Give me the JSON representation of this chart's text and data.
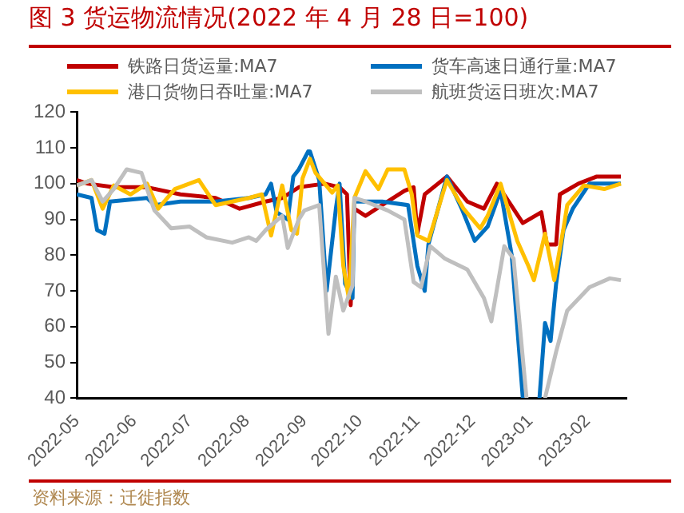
{
  "chart_data": {
    "type": "line",
    "title": "图 3 货运物流情况(2022 年 4 月 28 日=100)",
    "annotations": [
      "资料来源：迁徙指数"
    ],
    "legend": "top",
    "marker": "none",
    "line_style": "solid",
    "xlim": [
      "2022-05-01",
      "2023-02-22"
    ],
    "xticks": [
      "2022-05",
      "2022-06",
      "2022-07",
      "2022-08",
      "2022-09",
      "2022-10",
      "2022-11",
      "2022-12",
      "2023-01",
      "2023-02"
    ],
    "ylim": [
      40,
      120
    ],
    "yticks": [
      40,
      50,
      60,
      70,
      80,
      90,
      100,
      110,
      120
    ],
    "series": [
      {
        "name": "铁路日货运量:MA7",
        "color": "#c00000",
        "x": [
          "2022-05-01",
          "2022-05-07",
          "2022-05-21",
          "2022-06-08",
          "2022-06-26",
          "2022-07-15",
          "2022-07-28",
          "2022-08-11",
          "2022-08-20",
          "2022-08-29",
          "2022-09-12",
          "2022-09-20",
          "2022-09-24",
          "2022-09-26",
          "2022-09-28",
          "2022-10-04",
          "2022-10-13",
          "2022-10-25",
          "2022-10-30",
          "2022-11-01",
          "2022-11-05",
          "2022-11-17",
          "2022-11-28",
          "2022-12-07",
          "2022-12-14",
          "2022-12-28",
          "2023-01-07",
          "2023-01-10",
          "2023-01-15",
          "2023-01-17",
          "2023-01-27",
          "2023-02-06",
          "2023-02-19"
        ],
        "values": [
          101,
          100,
          99,
          99,
          97,
          96,
          93,
          95,
          96,
          99,
          100,
          99,
          97,
          66,
          93,
          91,
          94,
          98,
          99,
          86,
          97,
          102,
          95,
          93,
          100,
          89,
          92,
          83,
          83,
          97,
          100,
          102,
          102
        ]
      },
      {
        "name": "货车高速日通行量:MA7",
        "color": "#0070c0",
        "x": [
          "2022-05-01",
          "2022-05-09",
          "2022-05-12",
          "2022-05-16",
          "2022-05-19",
          "2022-06-08",
          "2022-06-12",
          "2022-06-26",
          "2022-07-15",
          "2022-08-02",
          "2022-08-11",
          "2022-08-14",
          "2022-08-17",
          "2022-08-23",
          "2022-08-26",
          "2022-08-29",
          "2022-09-03",
          "2022-09-04",
          "2022-09-09",
          "2022-09-13",
          "2022-09-18",
          "2022-09-20",
          "2022-09-23",
          "2022-09-27",
          "2022-09-28",
          "2022-10-13",
          "2022-10-27",
          "2022-11-01",
          "2022-11-05",
          "2022-11-07",
          "2022-11-17",
          "2022-11-25",
          "2022-12-02",
          "2022-12-09",
          "2022-12-16",
          "2022-12-22",
          "2022-12-28",
          "2023-01-01",
          "2023-01-06",
          "2023-01-09",
          "2023-01-12",
          "2023-01-15",
          "2023-01-19",
          "2023-01-24",
          "2023-02-02",
          "2023-02-19"
        ],
        "values": [
          97,
          96,
          87,
          86,
          95,
          96,
          94,
          95,
          95,
          96,
          97,
          100,
          92,
          90,
          102,
          104,
          109,
          109,
          101,
          70,
          93,
          100,
          72,
          68,
          95,
          95,
          94,
          77,
          70,
          83,
          102,
          93,
          84,
          88,
          98,
          80,
          40,
          null,
          40,
          61,
          56,
          72,
          87,
          93,
          100,
          100
        ]
      },
      {
        "name": "港口货物日吞吐量:MA7",
        "color": "#ffc000",
        "x": [
          "2022-05-01",
          "2022-05-09",
          "2022-05-15",
          "2022-05-21",
          "2022-05-30",
          "2022-06-08",
          "2022-06-14",
          "2022-06-23",
          "2022-07-06",
          "2022-07-15",
          "2022-07-24",
          "2022-08-02",
          "2022-08-09",
          "2022-08-14",
          "2022-08-20",
          "2022-08-25",
          "2022-08-28",
          "2022-08-31",
          "2022-09-04",
          "2022-09-07",
          "2022-09-16",
          "2022-09-19",
          "2022-09-22",
          "2022-09-25",
          "2022-09-28",
          "2022-10-04",
          "2022-10-11",
          "2022-10-16",
          "2022-10-25",
          "2022-10-29",
          "2022-11-01",
          "2022-11-07",
          "2022-11-17",
          "2022-11-26",
          "2022-12-05",
          "2022-12-09",
          "2022-12-16",
          "2022-12-25",
          "2022-12-31",
          "2023-01-03",
          "2023-01-09",
          "2023-01-14",
          "2023-01-19",
          "2023-01-21",
          "2023-01-30",
          "2023-02-10",
          "2023-02-19"
        ],
        "values": [
          99.5,
          101,
          93,
          99.5,
          97,
          100,
          93,
          98.5,
          101,
          94,
          95,
          96,
          97,
          85.5,
          99.5,
          87,
          86,
          101.5,
          107,
          103,
          97.5,
          99.5,
          77,
          68,
          96,
          103.5,
          98.5,
          104,
          104,
          97,
          85.5,
          84,
          101,
          93,
          87.5,
          91,
          100,
          84,
          77,
          73,
          86,
          73,
          87.5,
          94,
          99.5,
          98.5,
          100
        ]
      },
      {
        "name": "航班货运日班次:MA7",
        "color": "#bfbfbf",
        "x": [
          "2022-05-01",
          "2022-05-09",
          "2022-05-15",
          "2022-05-21",
          "2022-05-28",
          "2022-06-05",
          "2022-06-12",
          "2022-06-21",
          "2022-07-01",
          "2022-07-10",
          "2022-07-24",
          "2022-08-02",
          "2022-08-06",
          "2022-08-11",
          "2022-08-20",
          "2022-08-23",
          "2022-08-29",
          "2022-09-01",
          "2022-09-09",
          "2022-09-14",
          "2022-09-18",
          "2022-09-22",
          "2022-09-27",
          "2022-09-28",
          "2022-10-04",
          "2022-10-16",
          "2022-10-25",
          "2022-10-30",
          "2022-11-03",
          "2022-11-08",
          "2022-11-16",
          "2022-11-28",
          "2022-12-07",
          "2022-12-11",
          "2022-12-18",
          "2022-12-23",
          "2022-12-30",
          "2023-01-01",
          "2023-01-09",
          "2023-01-15",
          "2023-01-21",
          "2023-02-02",
          "2023-02-13",
          "2023-02-19"
        ],
        "values": [
          99.5,
          101,
          95,
          98.5,
          104,
          103,
          92.5,
          87.5,
          88,
          85,
          83.5,
          85,
          84,
          87,
          91,
          82,
          90,
          92.5,
          94,
          58,
          74,
          64.5,
          71.5,
          96,
          95,
          92.5,
          90,
          72.5,
          71,
          82.5,
          79,
          76,
          68,
          61.5,
          82.5,
          79,
          40,
          null,
          40,
          53,
          64.5,
          71,
          73.5,
          73
        ]
      }
    ]
  }
}
